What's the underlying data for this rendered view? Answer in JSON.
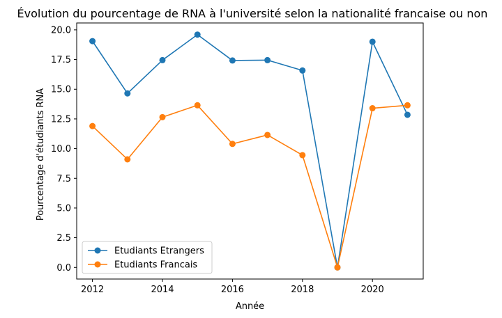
{
  "chart_data": {
    "type": "line",
    "title": "Évolution du pourcentage de RNA à l'université selon la nationalité francaise ou non",
    "xlabel": "Année",
    "ylabel": "Pourcentage d'étudiants RNA",
    "x": [
      2012,
      2013,
      2014,
      2015,
      2016,
      2017,
      2018,
      2019,
      2020,
      2021
    ],
    "xlim": [
      2011.55,
      2021.45
    ],
    "ylim": [
      -0.98,
      20.58
    ],
    "xticks": [
      2012,
      2014,
      2016,
      2018,
      2020
    ],
    "xtick_labels": [
      "2012",
      "2014",
      "2016",
      "2018",
      "2020"
    ],
    "yticks": [
      0,
      2.5,
      5,
      7.5,
      10,
      12.5,
      15,
      17.5,
      20
    ],
    "ytick_labels": [
      "0.0",
      "2.5",
      "5.0",
      "7.5",
      "10.0",
      "12.5",
      "15.0",
      "17.5",
      "20.0"
    ],
    "grid": false,
    "legend_position": "lower-left",
    "series": [
      {
        "name": "Etudiants Etrangers",
        "color": "#1f77b4",
        "values": [
          19.05,
          14.65,
          17.45,
          19.6,
          17.42,
          17.45,
          16.58,
          0.0,
          19.0,
          12.85
        ]
      },
      {
        "name": "Etudiants Francais",
        "color": "#ff7f0e",
        "values": [
          11.9,
          9.1,
          12.65,
          13.65,
          10.4,
          11.15,
          9.45,
          0.0,
          13.4,
          13.65
        ]
      }
    ]
  }
}
